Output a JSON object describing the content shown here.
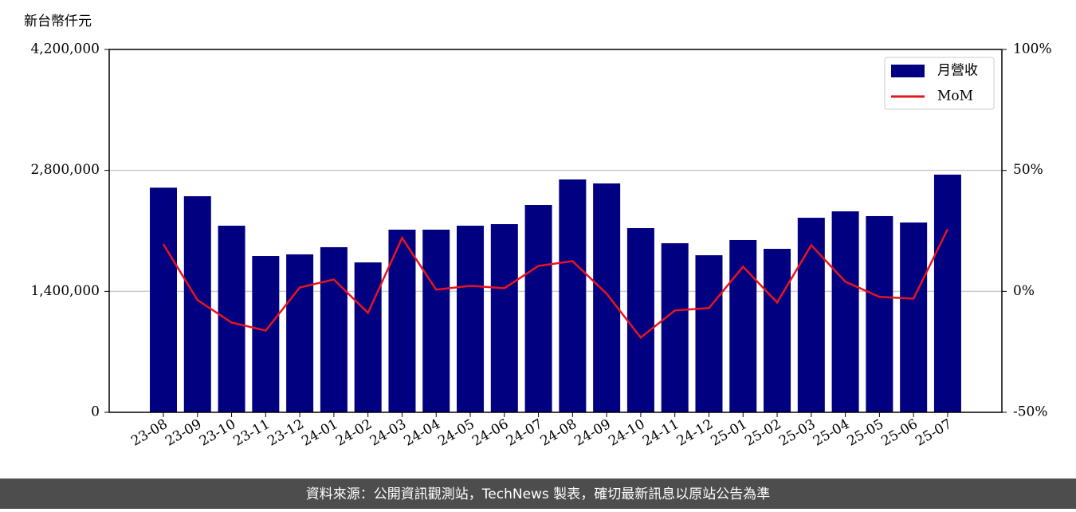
{
  "chart_data": {
    "type": "bar_line",
    "y_label": "新台幣仟元",
    "categories": [
      "23-08",
      "23-09",
      "23-10",
      "23-11",
      "23-12",
      "24-01",
      "24-02",
      "24-03",
      "24-04",
      "24-05",
      "24-06",
      "24-07",
      "24-08",
      "24-09",
      "24-10",
      "24-11",
      "24-12",
      "25-01",
      "25-02",
      "25-03",
      "25-04",
      "25-05",
      "25-06",
      "25-07"
    ],
    "series": [
      {
        "name": "月營收",
        "type": "bar",
        "color": "#000080",
        "values": [
          2600000,
          2501000,
          2160000,
          1809000,
          1828000,
          1911000,
          1735000,
          2114000,
          2114000,
          2160000,
          2178000,
          2400000,
          2695000,
          2649000,
          2132000,
          1957000,
          1818000,
          1994000,
          1892000,
          2252000,
          2326000,
          2271000,
          2197000,
          2751000
        ]
      },
      {
        "name": "MoM",
        "type": "line",
        "axis": "y2",
        "color": "#e8141c",
        "values": [
          19.5,
          -3.6,
          -12.9,
          -16.2,
          1.6,
          4.9,
          -8.9,
          22.1,
          0.7,
          2.3,
          1.3,
          10.5,
          12.5,
          -1.0,
          -19.1,
          -7.9,
          -6.9,
          10.2,
          -4.6,
          19.1,
          4.0,
          -2.3,
          -3.0,
          25.7
        ]
      }
    ],
    "ylim": [
      0,
      4200000
    ],
    "yticks": [
      0,
      {
        "value": 1400000,
        "label": "1,400,000"
      },
      {
        "value": 2800000,
        "label": "2,800,000"
      },
      {
        "value": 4200000,
        "label": "4,200,000"
      }
    ],
    "y2lim": [
      -50,
      100
    ],
    "y2ticks": [
      {
        "value": -50,
        "label": "-50%"
      },
      {
        "value": 0,
        "label": "0%"
      },
      {
        "value": 50,
        "label": "50%"
      },
      {
        "value": 100,
        "label": "100%"
      }
    ],
    "grid": true,
    "legend": "upper right",
    "footer": "資料來源：公開資訊觀測站，TechNews 製表，確切最新訊息以原站公告為準"
  }
}
